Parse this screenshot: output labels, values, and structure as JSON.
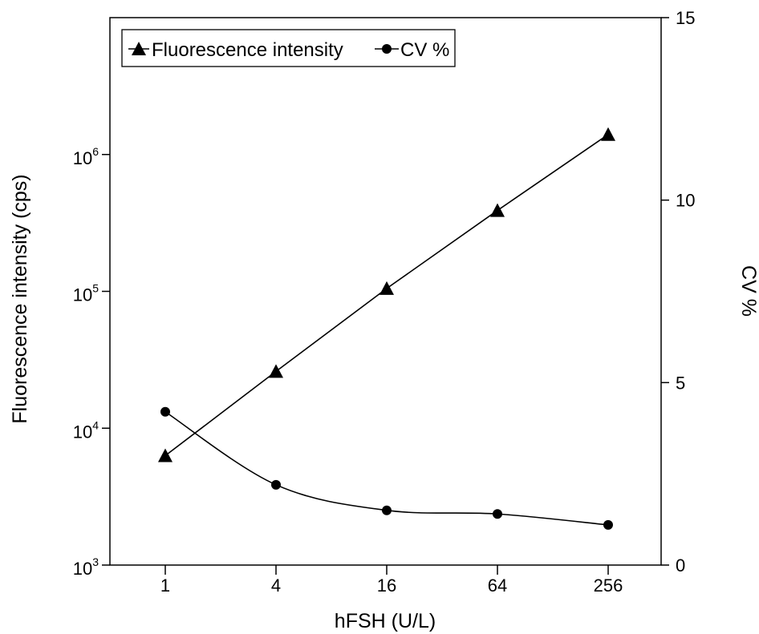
{
  "chart_data": {
    "type": "line",
    "x": [
      1,
      4,
      16,
      64,
      256
    ],
    "x_tick_labels": [
      "1",
      "4",
      "16",
      "64",
      "256"
    ],
    "xlabel": "hFSH (U/L)",
    "y_left": {
      "label": "Fluorescence intensity (cps)",
      "scale": "log",
      "lim": [
        1000,
        10000000
      ],
      "tick_bases": [
        "10",
        "10",
        "10",
        "10"
      ],
      "tick_exponents": [
        "3",
        "4",
        "5",
        "6"
      ]
    },
    "y_right": {
      "label": "CV %",
      "scale": "linear",
      "lim": [
        0,
        15
      ],
      "ticks": [
        "0",
        "5",
        "10",
        "15"
      ]
    },
    "series": [
      {
        "name": "Fluorescence intensity",
        "axis": "left",
        "marker": "triangle",
        "values": [
          6300,
          26000,
          105000,
          390000,
          1400000
        ]
      },
      {
        "name": "CV %",
        "axis": "right",
        "marker": "circle",
        "values": [
          4.2,
          2.2,
          1.5,
          1.4,
          1.1
        ]
      }
    ],
    "legend": {
      "placement": "top-left",
      "labels": [
        "Fluorescence intensity",
        "CV %"
      ]
    },
    "grid": false
  }
}
